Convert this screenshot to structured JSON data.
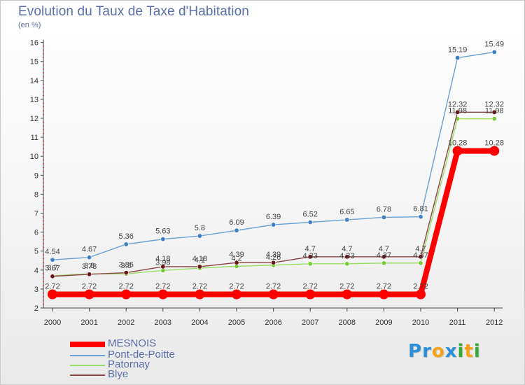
{
  "chart_data": {
    "type": "line",
    "title": "Evolution du Taux de Taxe d'Habitation",
    "subtitle": "(en %)",
    "categories": [
      "2000",
      "2001",
      "2002",
      "2003",
      "2004",
      "2005",
      "2006",
      "2007",
      "2008",
      "2009",
      "2010",
      "2011",
      "2012"
    ],
    "ylim": [
      2,
      16
    ],
    "yticks": [
      2,
      3,
      4,
      5,
      6,
      7,
      8,
      9,
      10,
      11,
      12,
      13,
      14,
      15,
      16
    ],
    "grid": false,
    "legend_position": "bottom-left",
    "series": [
      {
        "name": "MESNOIS",
        "color": "#ff0000",
        "marker": "#ff0000",
        "values": [
          2.72,
          2.72,
          2.72,
          2.72,
          2.72,
          2.72,
          2.72,
          2.72,
          2.72,
          2.72,
          2.72,
          10.28,
          10.28
        ]
      },
      {
        "name": "Pont-de-Poitte",
        "color": "#6a9fd4",
        "marker": "#3d7fc4",
        "values": [
          4.54,
          4.67,
          5.36,
          5.63,
          5.8,
          6.09,
          6.39,
          6.52,
          6.65,
          6.78,
          6.81,
          15.19,
          15.49
        ]
      },
      {
        "name": "Patornay",
        "color": "#99dd66",
        "marker": "#77cc33",
        "values": [
          3.7,
          3.8,
          3.8,
          3.98,
          4.1,
          4.2,
          4.26,
          4.33,
          4.33,
          4.37,
          4.37,
          11.98,
          11.98
        ]
      },
      {
        "name": "Blye",
        "color": "#884444",
        "marker": "#661818",
        "values": [
          3.67,
          3.78,
          3.86,
          4.18,
          4.18,
          4.39,
          4.39,
          4.7,
          4.7,
          4.7,
          4.7,
          12.32,
          12.32
        ]
      }
    ],
    "point_labels": [
      [
        "2.72",
        "2.72",
        "2.72",
        "2.72",
        "2.72",
        "2.72",
        "2.72",
        "2.72",
        "2.72",
        "2.72",
        "2.72",
        "10.28",
        "10.28"
      ],
      [
        "4.54",
        "4.67",
        "5.36",
        "5.63",
        "5.8",
        "6.09",
        "6.39",
        "6.52",
        "6.65",
        "6.78",
        "6.81",
        "15.19",
        "15.49"
      ],
      [
        "3.7",
        "3.8",
        "3.8",
        "3.98",
        "4.1",
        "4.2",
        "4.26",
        "4.33",
        "4.33",
        "4.37",
        "4.37",
        "11.98",
        "11.98"
      ],
      [
        "3.67",
        "3.78",
        "3.86",
        "4.18",
        "4.18",
        "4.39",
        "4.39",
        "4.7",
        "4.7",
        "4.7",
        "4.7",
        "12.32",
        "12.32"
      ]
    ]
  },
  "logo": {
    "text": "Proxiti",
    "colors": [
      "#2a8fd6",
      "#2a8fd6",
      "#f7a21b",
      "#2a8fd6",
      "#33aa33",
      "#f7a21b",
      "#33aa33"
    ]
  }
}
